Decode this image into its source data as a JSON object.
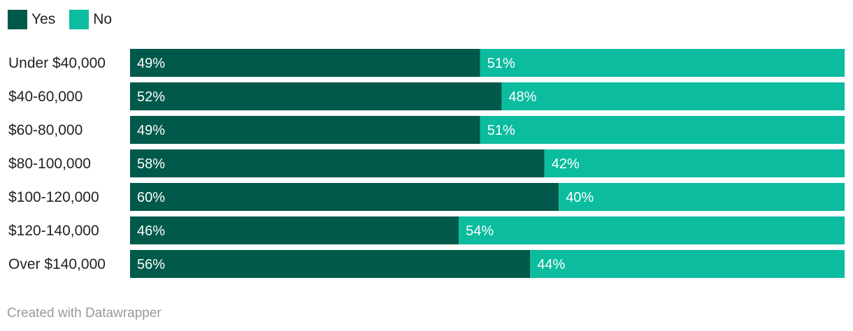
{
  "legend": [
    {
      "label": "Yes",
      "color": "#00594a"
    },
    {
      "label": "No",
      "color": "#0bbc9f"
    }
  ],
  "chart_data": {
    "type": "bar",
    "orientation": "horizontal",
    "stacked": true,
    "categories": [
      "Under $40,000",
      "$40-60,000",
      "$60-80,000",
      "$80-100,000",
      "$100-120,000",
      "$120-140,000",
      "Over $140,000"
    ],
    "series": [
      {
        "name": "Yes",
        "color": "#00594a",
        "values": [
          49,
          52,
          49,
          58,
          60,
          46,
          56
        ],
        "labels": [
          "49%",
          "52%",
          "49%",
          "58%",
          "60%",
          "46%",
          "56%"
        ]
      },
      {
        "name": "No",
        "color": "#0bbc9f",
        "values": [
          51,
          48,
          51,
          42,
          40,
          54,
          44
        ],
        "labels": [
          "51%",
          "48%",
          "51%",
          "42%",
          "40%",
          "54%",
          "44%"
        ]
      }
    ],
    "xlim": [
      0,
      100
    ],
    "legend_position": "top-left",
    "grid": false
  },
  "credit": "Created with Datawrapper"
}
